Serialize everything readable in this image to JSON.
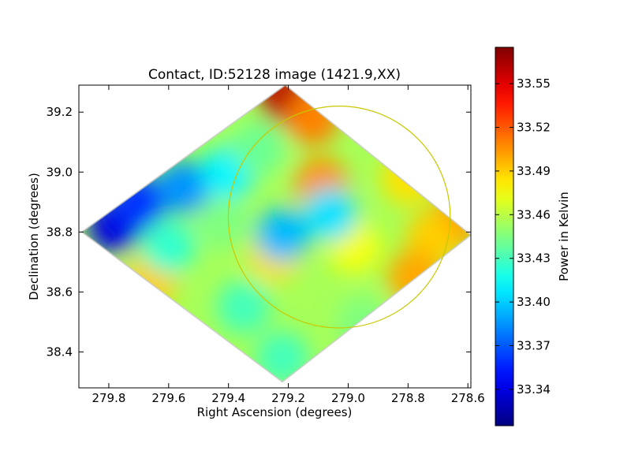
{
  "chart_data": {
    "type": "heatmap",
    "title": "Contact, ID:52128 image (1421.9,XX)",
    "xlabel": "Right Ascension (degrees)",
    "ylabel": "Declination (degrees)",
    "xlim": [
      279.9,
      278.59
    ],
    "ylim": [
      38.28,
      39.29
    ],
    "x_ticks": [
      279.8,
      279.6,
      279.4,
      279.2,
      279.0,
      278.8,
      278.6
    ],
    "x_tick_labels": [
      "279.8",
      "279.6",
      "279.4",
      "279.2",
      "279.0",
      "278.8",
      "278.6"
    ],
    "y_ticks": [
      38.4,
      38.6,
      38.8,
      39.0,
      39.2
    ],
    "y_tick_labels": [
      "38.4",
      "38.6",
      "38.8",
      "39.0",
      "39.2"
    ],
    "colorbar": {
      "label": "Power in Kelvin",
      "min": 33.315,
      "max": 33.575,
      "colormap": "jet",
      "ticks": [
        33.34,
        33.37,
        33.4,
        33.43,
        33.46,
        33.49,
        33.52,
        33.55
      ],
      "tick_labels": [
        "33.34",
        "33.37",
        "33.40",
        "33.43",
        "33.46",
        "33.49",
        "33.52",
        "33.55"
      ]
    },
    "map_footprint_corners": [
      {
        "ra": 279.21,
        "dec": 39.29
      },
      {
        "ra": 278.59,
        "dec": 38.79
      },
      {
        "ra": 279.22,
        "dec": 38.3
      },
      {
        "ra": 279.89,
        "dec": 38.8
      }
    ],
    "map_base_value": 33.455,
    "map_features": [
      {
        "ra": 279.21,
        "dec": 39.25,
        "value": 33.56
      },
      {
        "ra": 279.12,
        "dec": 39.18,
        "value": 33.51
      },
      {
        "ra": 278.8,
        "dec": 38.98,
        "value": 33.485
      },
      {
        "ra": 278.66,
        "dec": 38.82,
        "value": 33.505
      },
      {
        "ra": 278.72,
        "dec": 38.78,
        "value": 33.49
      },
      {
        "ra": 279.09,
        "dec": 38.96,
        "value": 33.505
      },
      {
        "ra": 278.98,
        "dec": 38.75,
        "value": 33.475
      },
      {
        "ra": 278.78,
        "dec": 38.65,
        "value": 33.5
      },
      {
        "ra": 279.25,
        "dec": 38.72,
        "value": 33.485
      },
      {
        "ra": 279.66,
        "dec": 38.64,
        "value": 33.49
      },
      {
        "ra": 279.78,
        "dec": 38.82,
        "value": 33.34
      },
      {
        "ra": 279.7,
        "dec": 38.9,
        "value": 33.36
      },
      {
        "ra": 279.55,
        "dec": 38.95,
        "value": 33.385
      },
      {
        "ra": 279.4,
        "dec": 39.0,
        "value": 33.41
      },
      {
        "ra": 279.6,
        "dec": 38.75,
        "value": 33.425
      },
      {
        "ra": 279.35,
        "dec": 38.55,
        "value": 33.43
      },
      {
        "ra": 279.22,
        "dec": 38.38,
        "value": 33.43
      },
      {
        "ra": 279.22,
        "dec": 38.79,
        "value": 33.395
      },
      {
        "ra": 279.06,
        "dec": 38.86,
        "value": 33.405
      },
      {
        "ra": 279.42,
        "dec": 38.83,
        "value": 33.445
      },
      {
        "ra": 279.3,
        "dec": 39.08,
        "value": 33.44
      },
      {
        "ra": 278.95,
        "dec": 38.5,
        "value": 33.445
      }
    ],
    "annotation_circle": {
      "center_ra": 279.03,
      "center_dec": 38.85,
      "radius_deg": 0.37,
      "color": "#c8c800"
    }
  }
}
